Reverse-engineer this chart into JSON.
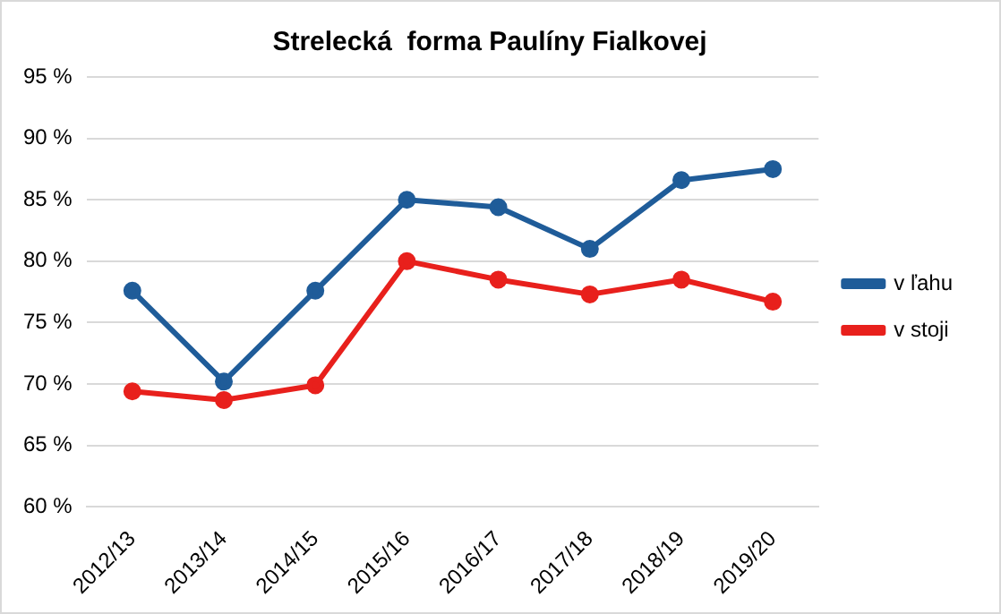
{
  "chart_data": {
    "type": "line",
    "title": "Strelecká  forma Paulíny Fialkovej",
    "categories": [
      "2012/13",
      "2013/14",
      "2014/15",
      "2015/16",
      "2016/17",
      "2017/18",
      "2018/19",
      "2019/20"
    ],
    "series": [
      {
        "name": "v ľahu",
        "color": "#1f5c99",
        "values": [
          77.6,
          70.2,
          77.6,
          85.0,
          84.4,
          81.0,
          86.6,
          87.5
        ]
      },
      {
        "name": "v stoji",
        "color": "#e8201c",
        "values": [
          69.4,
          68.7,
          69.9,
          80.0,
          78.5,
          77.3,
          78.5,
          76.7
        ]
      }
    ],
    "ylim": [
      60,
      95
    ],
    "yticks": [
      {
        "value": 60,
        "label": "60 %"
      },
      {
        "value": 65,
        "label": "65 %"
      },
      {
        "value": 70,
        "label": "70 %"
      },
      {
        "value": 75,
        "label": "75 %"
      },
      {
        "value": 80,
        "label": "80 %"
      },
      {
        "value": 85,
        "label": "85 %"
      },
      {
        "value": 90,
        "label": "90 %"
      },
      {
        "value": 95,
        "label": "95 %"
      }
    ],
    "grid": "y",
    "legend": "right",
    "marker": "circle",
    "line_style": "solid"
  }
}
